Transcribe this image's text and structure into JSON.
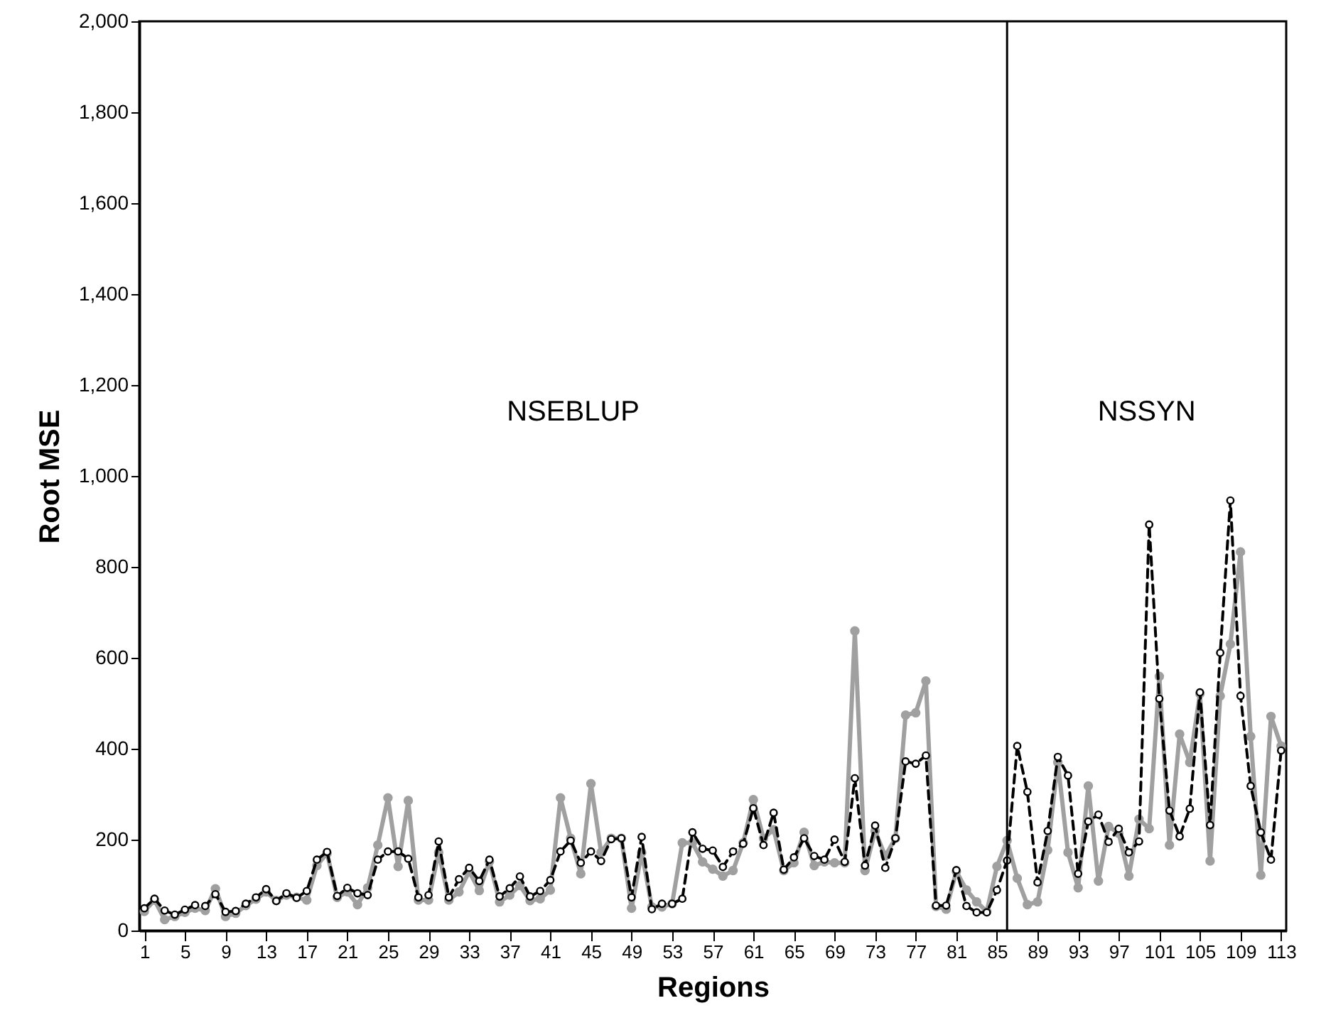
{
  "chart_data": {
    "type": "line",
    "xlabel": "Regions",
    "ylabel": "Root MSE",
    "x": [
      1,
      2,
      3,
      4,
      5,
      6,
      7,
      8,
      9,
      10,
      11,
      12,
      13,
      14,
      15,
      16,
      17,
      18,
      19,
      20,
      21,
      22,
      23,
      24,
      25,
      26,
      27,
      28,
      29,
      30,
      31,
      32,
      33,
      34,
      35,
      36,
      37,
      38,
      39,
      40,
      41,
      42,
      43,
      44,
      45,
      46,
      47,
      48,
      49,
      50,
      51,
      52,
      53,
      54,
      55,
      56,
      57,
      58,
      59,
      60,
      61,
      62,
      63,
      64,
      65,
      66,
      67,
      68,
      69,
      70,
      71,
      72,
      73,
      74,
      75,
      76,
      77,
      78,
      79,
      80,
      81,
      82,
      83,
      84,
      85,
      86,
      87,
      88,
      89,
      90,
      91,
      92,
      93,
      94,
      95,
      96,
      97,
      98,
      99,
      100,
      101,
      102,
      103,
      104,
      105,
      106,
      107,
      108,
      109,
      110,
      111,
      112,
      113
    ],
    "series": [
      {
        "color": "#a0a0a0",
        "line_style": "solid",
        "marker": "circle",
        "values": [
          42,
          67,
          24,
          31,
          40,
          49,
          44,
          92,
          31,
          38,
          55,
          69,
          85,
          66,
          78,
          73,
          67,
          143,
          170,
          73,
          85,
          57,
          94,
          188,
          292,
          141,
          286,
          67,
          67,
          172,
          67,
          85,
          130,
          88,
          152,
          63,
          78,
          99,
          66,
          70,
          89,
          292,
          203,
          125,
          323,
          172,
          203,
          203,
          49,
          172,
          52,
          52,
          59,
          193,
          193,
          151,
          135,
          120,
          132,
          193,
          288,
          203,
          222,
          132,
          149,
          216,
          143,
          151,
          149,
          149,
          659,
          132,
          219,
          164,
          203,
          474,
          479,
          549,
          53,
          47,
          130,
          89,
          63,
          42,
          141,
          198,
          115,
          57,
          63,
          177,
          370,
          172,
          94,
          318,
          109,
          229,
          214,
          120,
          245,
          224,
          559,
          188,
          432,
          370,
          521,
          153,
          516,
          630,
          833,
          427,
          122,
          471,
          406
        ]
      },
      {
        "color": "#000000",
        "line_style": "dashed",
        "marker": "circle",
        "values": [
          49,
          70,
          44,
          35,
          46,
          56,
          54,
          80,
          41,
          43,
          59,
          73,
          91,
          65,
          82,
          72,
          87,
          156,
          173,
          76,
          94,
          82,
          78,
          156,
          174,
          174,
          158,
          73,
          78,
          196,
          73,
          113,
          138,
          109,
          156,
          75,
          93,
          119,
          75,
          87,
          111,
          174,
          198,
          149,
          174,
          153,
          201,
          203,
          73,
          206,
          47,
          59,
          59,
          70,
          216,
          180,
          176,
          140,
          174,
          191,
          269,
          188,
          259,
          134,
          161,
          203,
          164,
          156,
          200,
          151,
          335,
          143,
          231,
          138,
          203,
          372,
          367,
          385,
          55,
          55,
          133,
          54,
          40,
          40,
          89,
          154,
          406,
          305,
          106,
          219,
          382,
          341,
          125,
          240,
          255,
          195,
          224,
          172,
          196,
          893,
          510,
          264,
          207,
          268,
          524,
          232,
          611,
          946,
          516,
          318,
          216,
          156,
          396
        ]
      }
    ],
    "xlim": [
      0.5,
      113.5
    ],
    "xticks": [
      1,
      5,
      9,
      13,
      17,
      21,
      25,
      29,
      33,
      37,
      41,
      45,
      49,
      53,
      57,
      61,
      65,
      69,
      73,
      77,
      81,
      85,
      89,
      93,
      97,
      101,
      105,
      109,
      113
    ],
    "ylim": [
      0,
      2000
    ],
    "yticks": [
      0,
      200,
      400,
      600,
      800,
      {
        "value": 1000,
        "label": "1,000"
      },
      {
        "value": 1200,
        "label": "1,200"
      },
      {
        "value": 1400,
        "label": "1,400"
      },
      {
        "value": 1600,
        "label": "1,600"
      },
      {
        "value": 1800,
        "label": "1,800"
      },
      {
        "value": 2000,
        "label": "2,000"
      }
    ],
    "ref_lines": [
      {
        "axis": "x",
        "value": 86,
        "color": "#000000"
      }
    ],
    "annotations": [
      "NSEBLUP",
      "NSSYN"
    ],
    "grid": false
  }
}
